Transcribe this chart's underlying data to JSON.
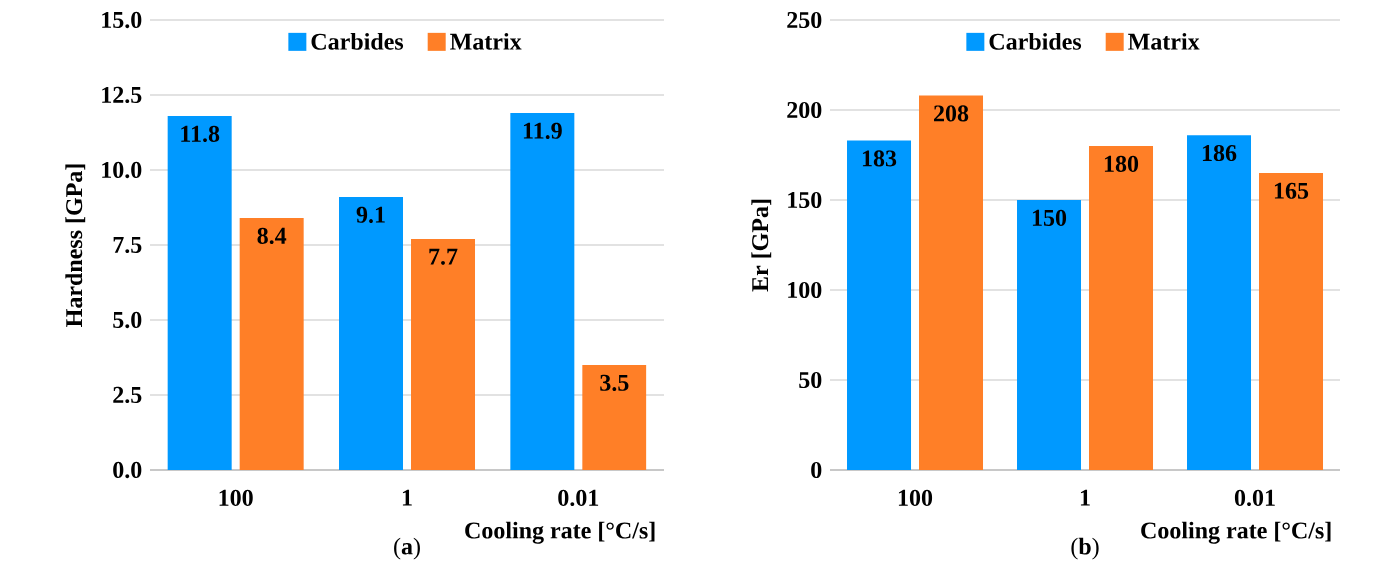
{
  "chart_data": [
    {
      "type": "bar",
      "categories": [
        "100",
        "1",
        "0.01"
      ],
      "xlabel": "Cooling rate [°C/s]",
      "ylabel": "Hardness [GPa]",
      "series": [
        {
          "name": "Carbides",
          "color": "#0099ff",
          "values": [
            11.8,
            9.1,
            11.9
          ]
        },
        {
          "name": "Matrix",
          "color": "#ff7f27",
          "values": [
            8.4,
            7.7,
            3.5
          ]
        }
      ],
      "ylim": [
        0,
        15
      ],
      "yticks": [
        {
          "value": 0,
          "label": "0.0"
        },
        {
          "value": 2.5,
          "label": "2.5"
        },
        {
          "value": 5,
          "label": "5.0"
        },
        {
          "value": 7.5,
          "label": "7.5"
        },
        {
          "value": 10,
          "label": "10.0"
        },
        {
          "value": 12.5,
          "label": "12.5"
        },
        {
          "value": 15,
          "label": "15.0"
        }
      ],
      "grid": "y",
      "legend": "top",
      "data_labels": true,
      "annotations": [
        "(**a**)"
      ]
    },
    {
      "type": "bar",
      "categories": [
        "100",
        "1",
        "0.01"
      ],
      "xlabel": "Cooling rate [°C/s]",
      "ylabel": "Er [GPa]",
      "series": [
        {
          "name": "Carbides",
          "color": "#0099ff",
          "values": [
            183,
            150,
            186
          ]
        },
        {
          "name": "Matrix",
          "color": "#ff7f27",
          "values": [
            208,
            180,
            165
          ]
        }
      ],
      "ylim": [
        0,
        250
      ],
      "yticks": [
        0,
        50,
        100,
        150,
        200,
        250
      ],
      "grid": "y",
      "legend": "top",
      "data_labels": true,
      "annotations": [
        "(**b**)"
      ]
    }
  ]
}
